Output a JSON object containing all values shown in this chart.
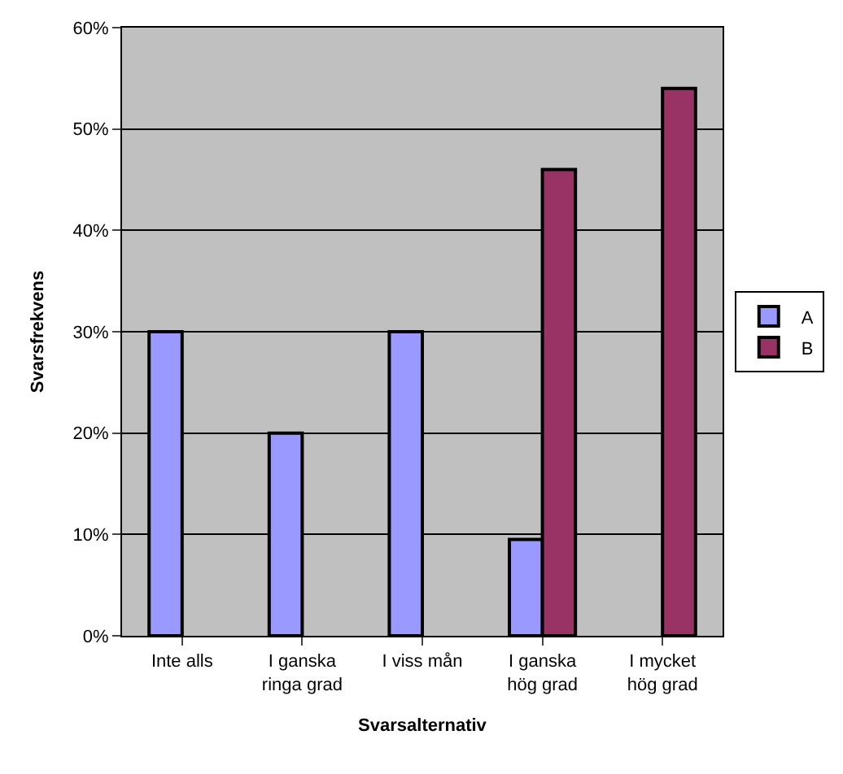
{
  "chart_data": {
    "type": "bar",
    "xlabel": "Svarsalternativ",
    "ylabel": "Svarsfrekvens",
    "categories": [
      "Inte alls",
      "I ganska\nringa grad",
      "I viss mån",
      "I ganska\nhög grad",
      "I mycket\nhög grad"
    ],
    "series": [
      {
        "name": "A",
        "color": "#9999ff",
        "values": [
          30,
          20,
          30,
          9.5,
          null
        ]
      },
      {
        "name": "B",
        "color": "#993366",
        "values": [
          null,
          null,
          null,
          46,
          54
        ]
      }
    ],
    "ylim": [
      0,
      60
    ],
    "yticks": [
      {
        "value": 0,
        "label": "0%"
      },
      {
        "value": 10,
        "label": "10%"
      },
      {
        "value": 20,
        "label": "20%"
      },
      {
        "value": 30,
        "label": "30%"
      },
      {
        "value": 40,
        "label": "40%"
      },
      {
        "value": 50,
        "label": "50%"
      },
      {
        "value": 60,
        "label": "60%"
      }
    ],
    "grid": "y",
    "legend": "right"
  }
}
